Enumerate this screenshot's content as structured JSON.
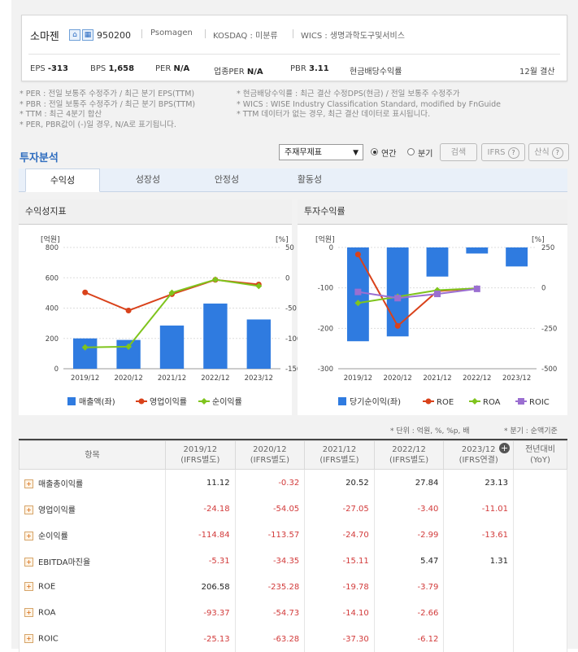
{
  "company": {
    "name": "소마젠",
    "code": "950200",
    "eng_name": "Psomagen",
    "market": "KOSDAQ : 미분류",
    "wics": "WICS : 생명과학도구및서비스",
    "icons": [
      "home-icon",
      "building-icon"
    ]
  },
  "stats": [
    {
      "label": "EPS",
      "value": "-313"
    },
    {
      "label": "BPS",
      "value": "1,658"
    },
    {
      "label": "PER",
      "value": "N/A"
    },
    {
      "label": "업종PER",
      "value": "N/A"
    },
    {
      "label": "PBR",
      "value": "3.11"
    },
    {
      "label": "현금배당수익률",
      "value": ""
    }
  ],
  "fiscal_note": "12월 결산",
  "notes_left": [
    "* PER : 전일 보통주 수정주가 / 최근 분기 EPS(TTM)",
    "* PBR : 전일 보통주 수정주가 / 최근 분기 BPS(TTM)",
    "* TTM : 최근 4분기 합산",
    "* PER, PBR값이 (-)일 경우, N/A로 표기됩니다."
  ],
  "notes_right": [
    "* 현금배당수익률 : 최근 결산 수정DPS(현금) / 전일 보통주 수정주가",
    "* WICS : WISE Industry Classification Standard, modified by FnGuide",
    "* TTM 데이터가 없는 경우, 최근 결산 데이터로 표시됩니다."
  ],
  "section_title": "투자분석",
  "controls": {
    "select_value": "주재무제표",
    "radio_annual": "연간",
    "radio_quarter": "분기",
    "search_btn": "검색",
    "ifrs_btn": "IFRS",
    "formula_btn": "산식"
  },
  "tabs": [
    "수익성",
    "성장성",
    "안정성",
    "활동성"
  ],
  "panels": {
    "left_title": "수익성지표",
    "right_title": "투자수익률"
  },
  "chart_data": [
    {
      "type": "bar",
      "title": "수익성지표",
      "categories": [
        "2019/12",
        "2020/12",
        "2021/12",
        "2022/12",
        "2023/12"
      ],
      "left_unit": "[억원]",
      "right_unit": "[%]",
      "ylim_left": [
        0,
        800
      ],
      "ylim_right": [
        -150,
        50
      ],
      "left_ticks": [
        "800",
        "600",
        "400",
        "200",
        "0"
      ],
      "right_ticks": [
        "50",
        "0",
        "-50",
        "-100",
        "-150"
      ],
      "series": [
        {
          "name": "매출액(좌)",
          "type": "bar",
          "axis": "left",
          "color": "#2f7be0",
          "values": [
            200,
            190,
            285,
            430,
            325
          ]
        },
        {
          "name": "영업이익률",
          "type": "line",
          "axis": "right",
          "color": "#d9421b",
          "values": [
            -24.18,
            -54.05,
            -27.05,
            -3.4,
            -11.01
          ]
        },
        {
          "name": "순이익률",
          "type": "line",
          "axis": "right",
          "color": "#7fc41d",
          "values": [
            -114.84,
            -113.57,
            -24.7,
            -2.99,
            -13.61
          ]
        }
      ]
    },
    {
      "type": "bar",
      "title": "투자수익률",
      "categories": [
        "2019/12",
        "2020/12",
        "2021/12",
        "2022/12",
        "2023/12"
      ],
      "left_unit": "[억원]",
      "right_unit": "[%]",
      "ylim_left": [
        -300,
        0
      ],
      "ylim_right": [
        -500,
        250
      ],
      "left_ticks": [
        "0",
        "-100",
        "-200",
        "-300"
      ],
      "right_ticks": [
        "250",
        "0",
        "-250",
        "-500"
      ],
      "series": [
        {
          "name": "당기순이익(좌)",
          "type": "bar",
          "axis": "left",
          "color": "#2f7be0",
          "values": [
            -232,
            -220,
            -72,
            -15,
            -47
          ]
        },
        {
          "name": "ROE",
          "type": "line",
          "axis": "right",
          "color": "#d9421b",
          "values": [
            206.58,
            -235.28,
            -19.78,
            -3.79,
            null
          ]
        },
        {
          "name": "ROA",
          "type": "line",
          "axis": "right",
          "color": "#7fc41d",
          "values": [
            -93.37,
            -54.73,
            -14.1,
            -2.66,
            null
          ]
        },
        {
          "name": "ROIC",
          "type": "line",
          "axis": "right",
          "color": "#9b6fd1",
          "values": [
            -25.13,
            -63.28,
            -37.3,
            -6.12,
            null
          ]
        }
      ]
    }
  ],
  "unit_note": "* 단위 : 억원, %, %p, 배",
  "quarter_note": "* 분기 : 순액기준",
  "table": {
    "header_item": "항목",
    "columns": [
      {
        "year": "2019/12",
        "basis": "(IFRS별도)"
      },
      {
        "year": "2020/12",
        "basis": "(IFRS별도)"
      },
      {
        "year": "2021/12",
        "basis": "(IFRS별도)"
      },
      {
        "year": "2022/12",
        "basis": "(IFRS별도)"
      },
      {
        "year": "2023/12",
        "basis": "(IFRS연결)"
      }
    ],
    "yoy_header": "전년대비",
    "yoy_sub": "(YoY)",
    "rows": [
      {
        "label": "매출총이익률",
        "values": [
          "11.12",
          "-0.32",
          "20.52",
          "27.84",
          "23.13"
        ]
      },
      {
        "label": "영업이익률",
        "values": [
          "-24.18",
          "-54.05",
          "-27.05",
          "-3.40",
          "-11.01"
        ]
      },
      {
        "label": "순이익률",
        "values": [
          "-114.84",
          "-113.57",
          "-24.70",
          "-2.99",
          "-13.61"
        ]
      },
      {
        "label": "EBITDA마진율",
        "values": [
          "-5.31",
          "-34.35",
          "-15.11",
          "5.47",
          "1.31"
        ]
      },
      {
        "label": "ROE",
        "values": [
          "206.58",
          "-235.28",
          "-19.78",
          "-3.79",
          ""
        ]
      },
      {
        "label": "ROA",
        "values": [
          "-93.37",
          "-54.73",
          "-14.10",
          "-2.66",
          ""
        ]
      },
      {
        "label": "ROIC",
        "values": [
          "-25.13",
          "-63.28",
          "-37.30",
          "-6.12",
          ""
        ]
      }
    ]
  }
}
